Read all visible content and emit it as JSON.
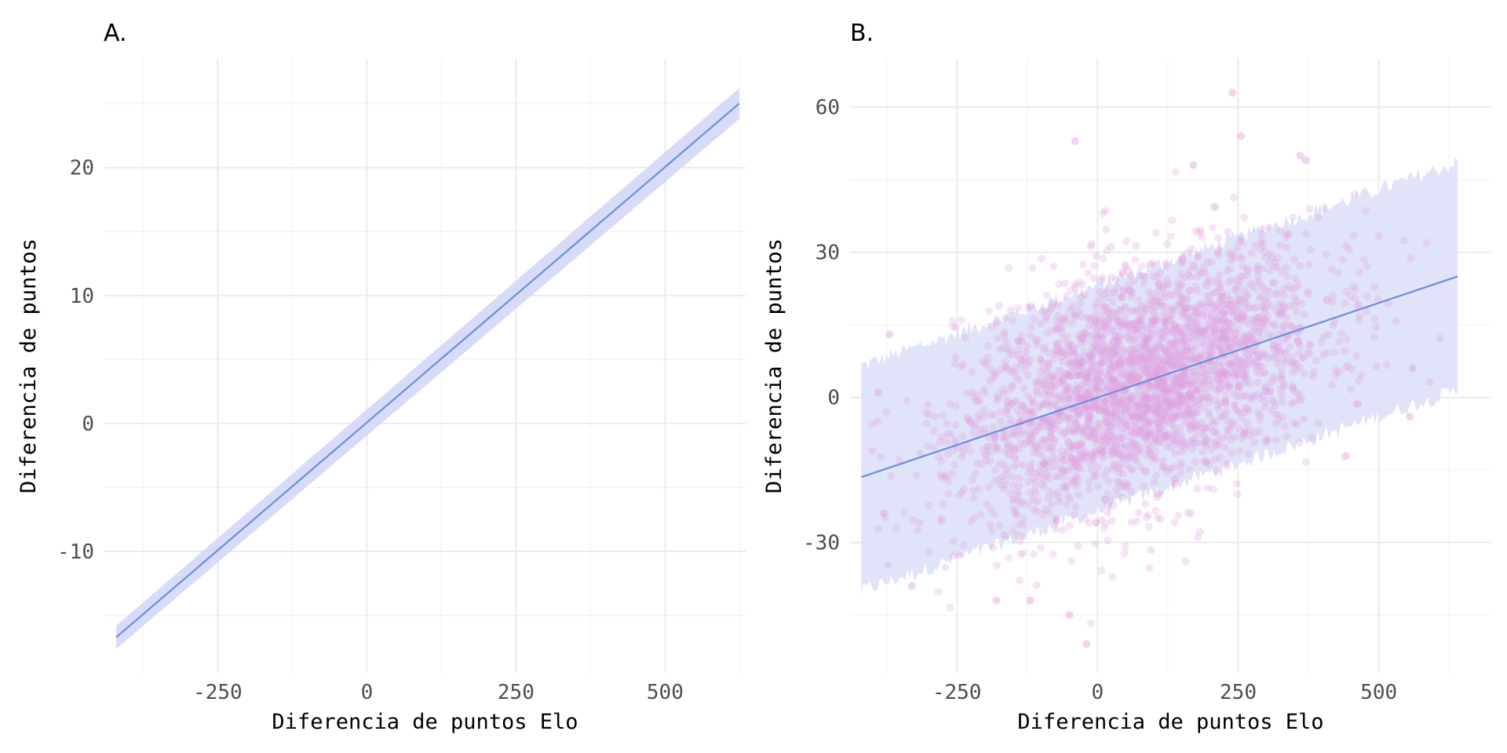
{
  "chart_data": [
    {
      "panel": "A.",
      "type": "line",
      "title": "A.",
      "xlabel": "Diferencia de puntos Elo",
      "ylabel": "Diferencia de puntos",
      "xlim": [
        -440,
        635
      ],
      "ylim": [
        -19.5,
        28.5
      ],
      "x_ticks": [
        -250,
        0,
        250,
        500
      ],
      "y_ticks": [
        -10,
        0,
        10,
        20
      ],
      "grid": true,
      "series": [
        {
          "x": [
            -420,
            624
          ],
          "y": [
            -16.7,
            25.0
          ],
          "ci_lower": [
            -17.6,
            23.8
          ],
          "ci_upper": [
            -15.8,
            26.2
          ]
        }
      ],
      "colors": {
        "line": "#6a8fdc",
        "ribbon": "#d3d7f6"
      }
    },
    {
      "panel": "B.",
      "type": "scatter",
      "title": "B.",
      "xlabel": "Diferencia de puntos Elo",
      "ylabel": "Diferencia de puntos",
      "xlim": [
        -440,
        700
      ],
      "ylim": [
        -57,
        70
      ],
      "x_ticks": [
        -250,
        0,
        250,
        500
      ],
      "y_ticks": [
        -30,
        0,
        30,
        60
      ],
      "grid": true,
      "fit_line": {
        "x": [
          -420,
          640
        ],
        "y": [
          -16.5,
          25.0
        ]
      },
      "prediction_band": {
        "x": [
          -420,
          640
        ],
        "lower": [
          -40.0,
          1.5
        ],
        "upper": [
          6.5,
          48.5
        ]
      },
      "scatter_summary": {
        "points_approx": 3000,
        "slope": 0.039,
        "intercept": 0.0,
        "residual_sd": 11.5,
        "x_mean": 80,
        "x_sd": 160
      },
      "notable_points": [
        {
          "x": 240,
          "y": 63
        },
        {
          "x": 255,
          "y": 54
        },
        {
          "x": -40,
          "y": 53
        },
        {
          "x": 360,
          "y": 50
        },
        {
          "x": 370,
          "y": 49
        },
        {
          "x": 170,
          "y": 48
        },
        {
          "x": -370,
          "y": 13
        },
        {
          "x": -390,
          "y": 1
        },
        {
          "x": -380,
          "y": -24
        },
        {
          "x": -330,
          "y": -39
        },
        {
          "x": -120,
          "y": -42
        },
        {
          "x": -180,
          "y": -42
        },
        {
          "x": -50,
          "y": -45
        },
        {
          "x": -20,
          "y": -51
        },
        {
          "x": 555,
          "y": -4
        },
        {
          "x": 560,
          "y": 6
        }
      ],
      "colors": {
        "points": "#dda0dd",
        "line": "#6a8fdc",
        "band": "#dfe2f8"
      }
    }
  ]
}
